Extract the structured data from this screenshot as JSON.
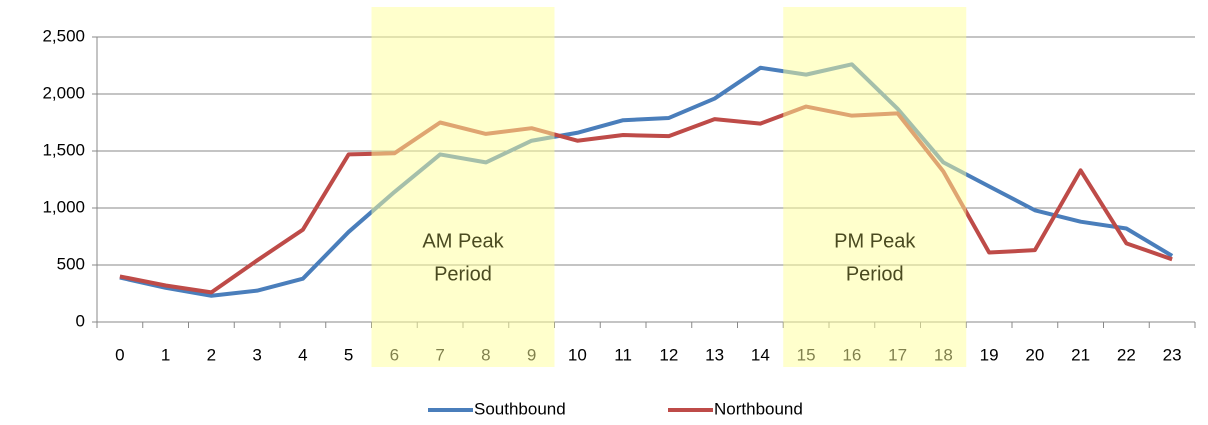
{
  "chart_data": {
    "type": "line",
    "categories": [
      "0",
      "1",
      "2",
      "3",
      "4",
      "5",
      "6",
      "7",
      "8",
      "9",
      "10",
      "11",
      "12",
      "13",
      "14",
      "15",
      "16",
      "17",
      "18",
      "19",
      "20",
      "21",
      "22",
      "23"
    ],
    "series": [
      {
        "name": "Southbound",
        "color": "#4a7ebb",
        "values": [
          390,
          300,
          230,
          275,
          380,
          790,
          1140,
          1470,
          1400,
          1590,
          1660,
          1770,
          1790,
          1960,
          2230,
          2170,
          2260,
          1870,
          1400,
          1190,
          980,
          880,
          820,
          580
        ]
      },
      {
        "name": "Northbound",
        "color": "#be4b48",
        "values": [
          400,
          320,
          260,
          540,
          810,
          1470,
          1480,
          1750,
          1650,
          1700,
          1590,
          1640,
          1630,
          1780,
          1740,
          1890,
          1810,
          1830,
          1320,
          610,
          630,
          1330,
          690,
          550
        ]
      }
    ],
    "ylim": [
      0,
      2500
    ],
    "yticks": [
      0,
      {
        "value": 500,
        "label": "500"
      },
      {
        "value": 1000,
        "label": "1,000"
      },
      {
        "value": 1500,
        "label": "1,500"
      },
      {
        "value": 2000,
        "label": "2,000"
      },
      {
        "value": 2500,
        "label": "2,500"
      }
    ],
    "grid": true,
    "legend": "bottom",
    "annotations": [
      {
        "lines": [
          "AM Peak",
          "Period"
        ],
        "start": "6",
        "end": "9",
        "color": "#ffff99"
      },
      {
        "lines": [
          "PM Peak",
          "Period"
        ],
        "start": "15",
        "end": "18",
        "color": "#ffff99"
      }
    ]
  }
}
